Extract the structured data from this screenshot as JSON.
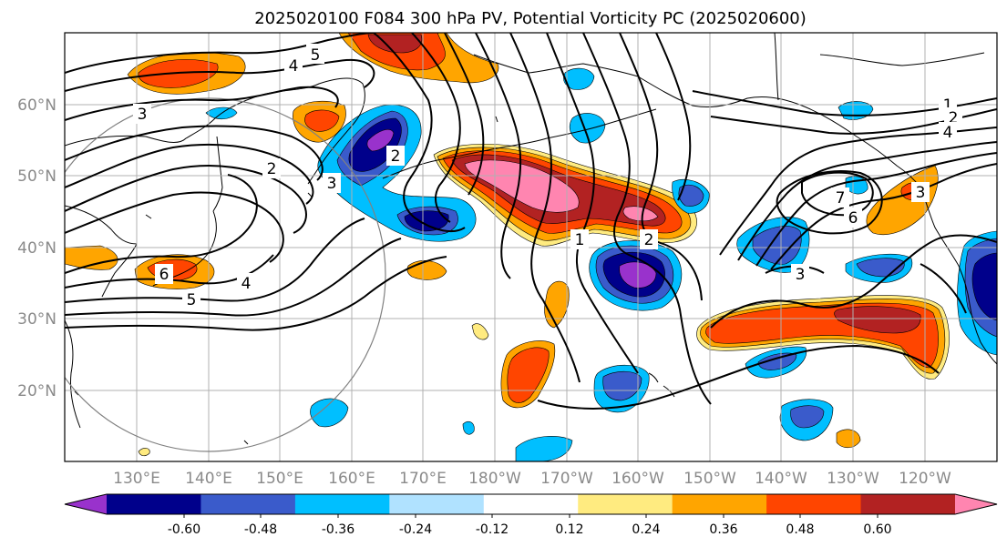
{
  "title": "2025020100 F084 300 hPa PV, Potential Vorticity PC (2025020600)",
  "lat_labels": [
    "60°N",
    "50°N",
    "40°N",
    "30°N",
    "20°N"
  ],
  "lon_labels": [
    "130°E",
    "140°E",
    "150°E",
    "160°E",
    "170°E",
    "180°W",
    "170°W",
    "160°W",
    "150°W",
    "140°W",
    "130°W",
    "120°W"
  ],
  "colorbar": {
    "colors": [
      "#9932CC",
      "#00008B",
      "#3A5BCB",
      "#00BFFF",
      "#B0E2FF",
      "#FFFFFF",
      "#FFEB80",
      "#FFA500",
      "#FF4500",
      "#B22222",
      "#FF85B0"
    ],
    "tick_labels": [
      "-0.60",
      "-0.48",
      "-0.36",
      "-0.24",
      "-0.12",
      "0.12",
      "0.24",
      "0.36",
      "0.48",
      "0.60"
    ]
  },
  "contour_labels": [
    "5",
    "4",
    "3",
    "2",
    "3",
    "2",
    "1",
    "2",
    "3",
    "4",
    "5",
    "6",
    "1",
    "2",
    "4",
    "7",
    "6",
    "3"
  ],
  "colors": {
    "contour": "#000000",
    "grid": "#b0b0b0",
    "coast": "#000000",
    "circle": "#808080"
  }
}
